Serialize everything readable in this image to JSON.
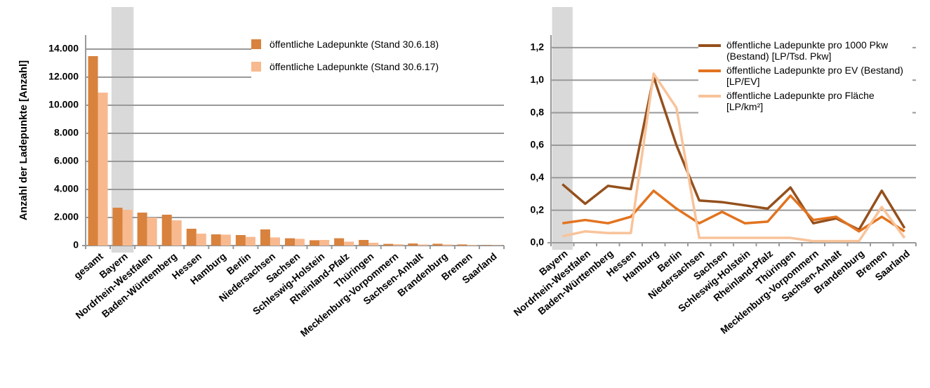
{
  "chart_data": [
    {
      "type": "bar",
      "y_label": "Anzahl der Ladepunkte [Anzahl]",
      "categories": [
        "gesamt",
        "Bayern",
        "Nordrhein-Westfalen",
        "Baden-Württemberg",
        "Hessen",
        "Hamburg",
        "Berlin",
        "Niedersachsen",
        "Sachsen",
        "Schleswig-Holstein",
        "Rheinland-Pfalz",
        "Thüringen",
        "Mecklenburg-Vorpommern",
        "Sachsen-Anhalt",
        "Brandenburg",
        "Bremen",
        "Saarland"
      ],
      "series": [
        {
          "name": "öffentliche Ladepunkte (Stand 30.6.18)",
          "color": "#d8823e",
          "values": [
            13500,
            2700,
            2350,
            2200,
            1200,
            800,
            750,
            1150,
            520,
            380,
            520,
            400,
            120,
            150,
            130,
            80,
            30
          ]
        },
        {
          "name": "öffentliche Ladepunkte (Stand 30.6.17)",
          "color": "#f8b98f",
          "values": [
            10900,
            2550,
            2000,
            1800,
            850,
            780,
            620,
            580,
            480,
            400,
            280,
            200,
            100,
            80,
            80,
            50,
            20
          ]
        }
      ],
      "ylim": [
        0,
        17000
      ],
      "yticks": [
        0,
        {
          "value": 2000,
          "label": "2.000"
        },
        {
          "value": 4000,
          "label": "4.000"
        },
        {
          "value": 6000,
          "label": "6.000"
        },
        {
          "value": 8000,
          "label": "8.000"
        },
        {
          "value": 10000,
          "label": "10.000"
        },
        {
          "value": 12000,
          "label": "12.000"
        },
        {
          "value": 14000,
          "label": "14.000"
        }
      ],
      "grid": true,
      "highlight": 1,
      "legend": "upper right"
    },
    {
      "type": "line",
      "categories": [
        "Bayern",
        "Nordrhein-Westfalen",
        "Baden-Württemberg",
        "Hessen",
        "Hamburg",
        "Berlin",
        "Niedersachsen",
        "Sachsen",
        "Schleswig-Holstein",
        "Rheinland-Pfalz",
        "Thüringen",
        "Mecklenburg-Vorpommern",
        "Sachsen-Anhalt",
        "Brandenburg",
        "Bremen",
        "Saarland"
      ],
      "series": [
        {
          "name": "öffentliche Ladepunkte pro 1000 Pkw (Bestand) [LP/Tsd. Pkw]",
          "color": "#94501d",
          "values": [
            0.36,
            0.24,
            0.35,
            0.33,
            1.02,
            0.6,
            0.26,
            0.25,
            0.23,
            0.21,
            0.34,
            0.12,
            0.15,
            0.08,
            0.32,
            0.09
          ]
        },
        {
          "name": "öffentliche Ladepunkte pro EV (Bestand) [LP/EV]",
          "color": "#e2731f",
          "values": [
            0.12,
            0.14,
            0.12,
            0.16,
            0.32,
            0.21,
            0.12,
            0.19,
            0.12,
            0.13,
            0.29,
            0.14,
            0.16,
            0.07,
            0.16,
            0.07
          ]
        },
        {
          "name": "öffentliche Ladepunkte pro Fläche [LP/km²]",
          "color": "#f8c39a",
          "values": [
            0.04,
            0.07,
            0.06,
            0.06,
            1.04,
            0.83,
            0.03,
            0.03,
            0.03,
            0.03,
            0.03,
            0.01,
            0.01,
            0.01,
            0.22,
            0.03
          ]
        }
      ],
      "ylim": [
        0,
        1.45
      ],
      "yticks": [
        {
          "value": 0,
          "label": "0,0"
        },
        {
          "value": 0.2,
          "label": "0,2"
        },
        {
          "value": 0.4,
          "label": "0,4"
        },
        {
          "value": 0.6,
          "label": "0,6"
        },
        {
          "value": 0.8,
          "label": "0,8"
        },
        {
          "value": 1.0,
          "label": "1,0"
        },
        {
          "value": 1.2,
          "label": "1,2"
        }
      ],
      "grid": true,
      "highlight": 0,
      "legend": "upper right"
    }
  ]
}
